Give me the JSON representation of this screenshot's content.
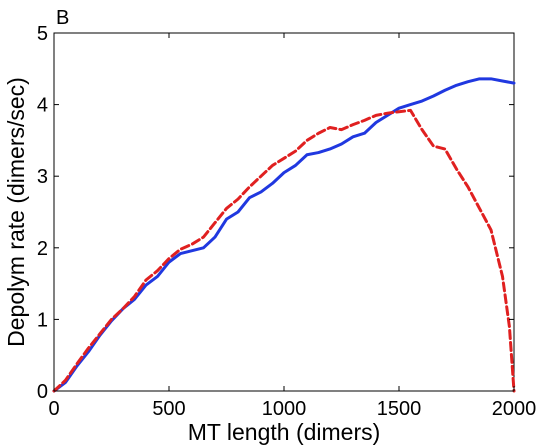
{
  "chart_data": {
    "type": "line",
    "panel_label": "B",
    "xlabel": "MT length (dimers)",
    "ylabel": "Depolym rate (dimers/sec)",
    "xlim": [
      0,
      2000
    ],
    "ylim": [
      0,
      5
    ],
    "xticks": [
      0,
      500,
      1000,
      1500,
      2000
    ],
    "yticks": [
      0,
      1,
      2,
      3,
      4,
      5
    ],
    "grid": false,
    "legend": "none",
    "series": [
      {
        "color": "#2038e0",
        "style": "solid",
        "x": [
          0,
          50,
          100,
          150,
          200,
          250,
          300,
          350,
          400,
          450,
          500,
          550,
          600,
          650,
          700,
          750,
          800,
          850,
          900,
          950,
          1000,
          1050,
          1100,
          1150,
          1200,
          1250,
          1300,
          1350,
          1400,
          1450,
          1500,
          1550,
          1600,
          1650,
          1700,
          1750,
          1800,
          1850,
          1900,
          1950,
          2000
        ],
        "y": [
          0.0,
          0.12,
          0.35,
          0.55,
          0.78,
          0.98,
          1.15,
          1.28,
          1.48,
          1.6,
          1.8,
          1.92,
          1.96,
          2.0,
          2.15,
          2.4,
          2.5,
          2.7,
          2.78,
          2.9,
          3.05,
          3.15,
          3.3,
          3.33,
          3.38,
          3.45,
          3.55,
          3.6,
          3.75,
          3.85,
          3.95,
          4.0,
          4.05,
          4.12,
          4.2,
          4.27,
          4.32,
          4.36,
          4.36,
          4.33,
          4.3
        ]
      },
      {
        "color": "#e02020",
        "style": "dashed",
        "x": [
          0,
          50,
          100,
          150,
          200,
          250,
          300,
          350,
          400,
          450,
          500,
          550,
          600,
          650,
          700,
          750,
          800,
          850,
          900,
          950,
          1000,
          1050,
          1100,
          1150,
          1200,
          1250,
          1300,
          1350,
          1400,
          1450,
          1500,
          1550,
          1600,
          1650,
          1700,
          1750,
          1800,
          1850,
          1900,
          1950,
          1980,
          2000
        ],
        "y": [
          0.0,
          0.15,
          0.38,
          0.6,
          0.8,
          1.0,
          1.15,
          1.32,
          1.55,
          1.68,
          1.85,
          1.98,
          2.05,
          2.15,
          2.35,
          2.55,
          2.68,
          2.85,
          3.0,
          3.15,
          3.25,
          3.35,
          3.5,
          3.6,
          3.68,
          3.65,
          3.72,
          3.78,
          3.85,
          3.88,
          3.9,
          3.92,
          3.65,
          3.42,
          3.38,
          3.1,
          2.85,
          2.55,
          2.25,
          1.6,
          0.9,
          0.0
        ]
      }
    ]
  }
}
